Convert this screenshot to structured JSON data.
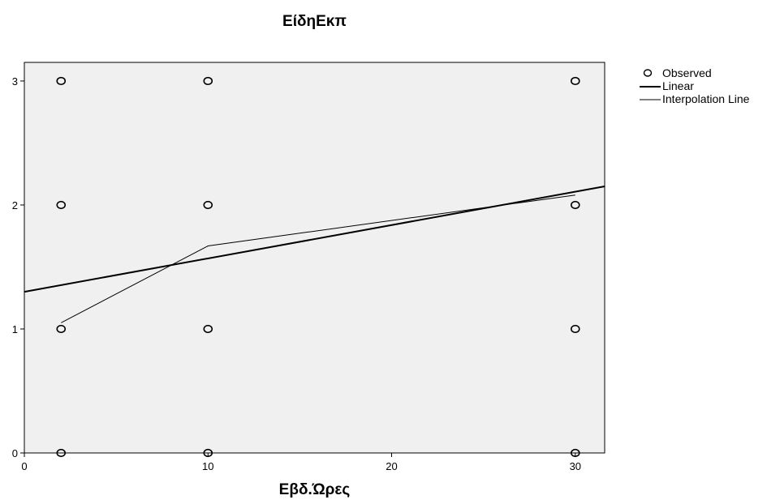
{
  "chart_data": {
    "type": "scatter",
    "title": "ΕίδηΕκπ",
    "xlabel": "Εβδ.Ώρες",
    "ylabel": "",
    "xlim": [
      0,
      31.6
    ],
    "ylim": [
      0,
      3.15
    ],
    "x_ticks": [
      0,
      10,
      20,
      30
    ],
    "y_ticks": [
      0,
      1,
      2,
      3
    ],
    "grid": false,
    "legend_position": "right",
    "background_color": "#f0f0f0",
    "series": [
      {
        "name": "Observed",
        "kind": "markers",
        "marker": "open-circle",
        "points": [
          {
            "x": 2,
            "y": 0
          },
          {
            "x": 2,
            "y": 1
          },
          {
            "x": 2,
            "y": 2
          },
          {
            "x": 2,
            "y": 3
          },
          {
            "x": 10,
            "y": 0
          },
          {
            "x": 10,
            "y": 1
          },
          {
            "x": 10,
            "y": 2
          },
          {
            "x": 10,
            "y": 3
          },
          {
            "x": 30,
            "y": 0
          },
          {
            "x": 30,
            "y": 1
          },
          {
            "x": 30,
            "y": 2
          },
          {
            "x": 30,
            "y": 3
          }
        ]
      },
      {
        "name": "Linear",
        "kind": "line",
        "stroke_width": 2,
        "points": [
          {
            "x": 0,
            "y": 1.3
          },
          {
            "x": 31.6,
            "y": 2.15
          }
        ]
      },
      {
        "name": "Interpolation Line",
        "kind": "line",
        "stroke_width": 1,
        "points": [
          {
            "x": 2,
            "y": 1.05
          },
          {
            "x": 10,
            "y": 1.67
          },
          {
            "x": 30,
            "y": 2.08
          }
        ]
      }
    ]
  }
}
